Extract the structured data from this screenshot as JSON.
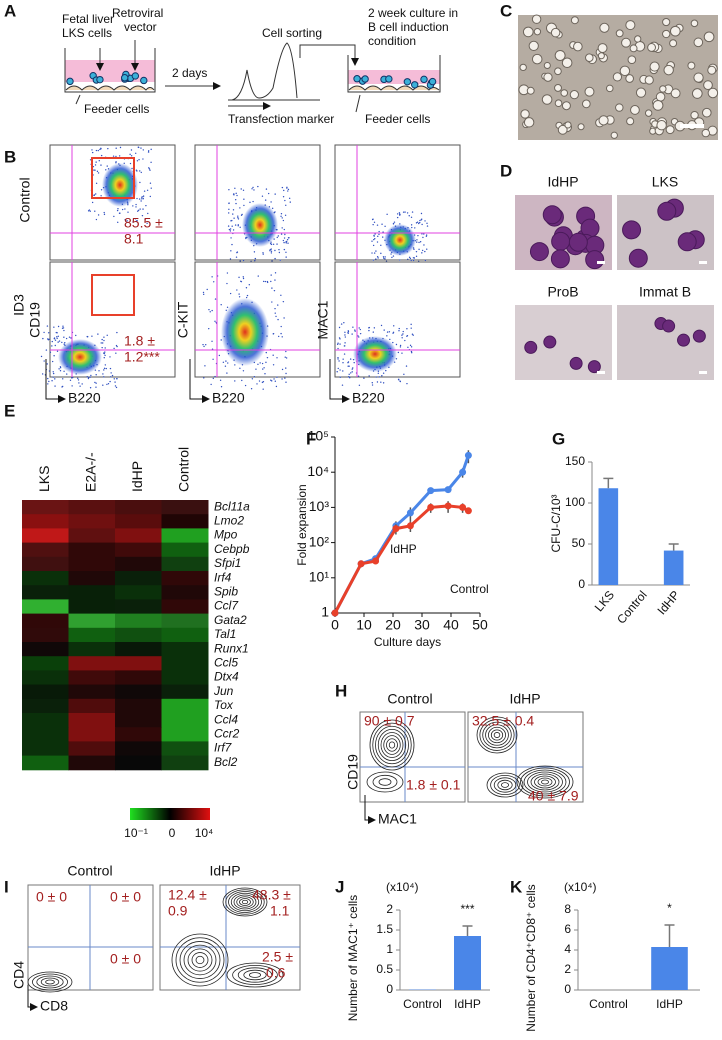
{
  "panel_labels": [
    "A",
    "B",
    "C",
    "D",
    "E",
    "F",
    "G",
    "H",
    "I",
    "J",
    "K"
  ],
  "schematic": {
    "fetal_liver": [
      "Fetal liver",
      "LKS cells"
    ],
    "vector": [
      "Retroviral",
      "vector"
    ],
    "days": "2 days",
    "sorting": "Cell sorting",
    "marker": "Transfection marker",
    "culture": [
      "2 week culture in",
      "B cell induction",
      "condition"
    ],
    "feeder_left": "Feeder cells",
    "feeder_right": "Feeder cells"
  },
  "flow_b": {
    "rows": [
      "Control",
      "ID3"
    ],
    "y_axes": [
      "CD19",
      "C-KIT",
      "MAC1"
    ],
    "x_axis": [
      "B220",
      "B220",
      "B220"
    ],
    "gate_control": [
      "85.5 ±",
      "8.1"
    ],
    "gate_id3": [
      "1.8 ±",
      "1.2***"
    ]
  },
  "micrographs": [
    "IdHP",
    "LKS",
    "ProB",
    "Immat B"
  ],
  "heatmap": {
    "columns": [
      "LKS",
      "E2A-/-",
      "IdHP",
      "Control"
    ],
    "genes": [
      "Bcl11a",
      "Lmo2",
      "Mpo",
      "Cebpb",
      "Sfpi1",
      "Irf4",
      "Spib",
      "Ccl7",
      "Gata2",
      "Tal1",
      "Runx1",
      "Ccl5",
      "Dtx4",
      "Jun",
      "Tox",
      "Ccl4",
      "Ccr2",
      "Irf7",
      "Bcl2"
    ],
    "colors": [
      [
        "#6a1414",
        "#5a1010",
        "#4a0e0e",
        "#3a1010"
      ],
      [
        "#8a1010",
        "#701010",
        "#5a0c0c",
        "#200505"
      ],
      [
        "#c01818",
        "#601010",
        "#801010",
        "#20a020"
      ],
      [
        "#501010",
        "#300808",
        "#400a0a",
        "#106010"
      ],
      [
        "#401010",
        "#300808",
        "#200808",
        "#104010"
      ],
      [
        "#0a300a",
        "#200808",
        "#0a200a",
        "#300808"
      ],
      [
        "#0a200a",
        "#082008",
        "#0a300a",
        "#200808"
      ],
      [
        "#30b030",
        "#082008",
        "#0a200a",
        "#300808"
      ],
      [
        "#300808",
        "#30a030",
        "#208020",
        "#207020"
      ],
      [
        "#300a0a",
        "#106010",
        "#105010",
        "#106010"
      ],
      [
        "#100808",
        "#0a300a",
        "#081808",
        "#0a300a"
      ],
      [
        "#0a400a",
        "#801010",
        "#801010",
        "#0a300a"
      ],
      [
        "#0a300a",
        "#400a0a",
        "#300808",
        "#0a300a"
      ],
      [
        "#081a08",
        "#200808",
        "#100808",
        "#0a200a"
      ],
      [
        "#0a200a",
        "#500c0c",
        "#200808",
        "#20a020"
      ],
      [
        "#0a300a",
        "#801010",
        "#200808",
        "#20a020"
      ],
      [
        "#0a300a",
        "#801010",
        "#300808",
        "#20a020"
      ],
      [
        "#0a300a",
        "#500c0c",
        "#100808",
        "#105010"
      ],
      [
        "#106010",
        "#200808",
        "#080808",
        "#104010"
      ]
    ],
    "scale_labels": [
      "10⁻¹",
      "0",
      "10⁴"
    ]
  },
  "contour_h": {
    "titles": [
      "Control",
      "IdHP"
    ],
    "labels_control": [
      "90 ± 0.7",
      "1.8 ±  0.1"
    ],
    "labels_idhp": [
      "32.5 ± 0.4",
      "40 ± 7.9"
    ],
    "y_axis": "CD19",
    "x_axis": "MAC1"
  },
  "contour_i": {
    "titles": [
      "Control",
      "IdHP"
    ],
    "labels_control": [
      "0 ± 0",
      "0 ± 0",
      "0 ± 0"
    ],
    "labels_idhp": [
      "12.4 ±",
      "0.9",
      "48.3 ±",
      "1.1",
      "2.5 ±",
      "0.6"
    ],
    "y_axis": "CD4",
    "x_axis": "CD8"
  },
  "chart_data": [
    {
      "type": "line",
      "ylabel": "Fold expansion",
      "xlabel": "Culture days",
      "log_y": true,
      "x": [
        0,
        9,
        14,
        21,
        26,
        33,
        39,
        44,
        46
      ],
      "xlim": [
        0,
        50
      ],
      "xticks": [
        0,
        10,
        20,
        30,
        40,
        50
      ],
      "ylim": [
        1,
        100000
      ],
      "yticks": [
        1,
        {
          "value": 10,
          "label": "10¹"
        },
        {
          "value": 100,
          "label": "10²"
        },
        {
          "value": 1000,
          "label": "10³"
        },
        {
          "value": 10000,
          "label": "10⁴"
        },
        {
          "value": 100000,
          "label": "10⁵"
        }
      ],
      "series": [
        {
          "name": "IdHP",
          "color": "#4a86e8",
          "values": [
            1,
            25,
            35,
            300,
            700,
            3000,
            3200,
            10000,
            30000
          ],
          "errors": [
            0,
            5,
            8,
            100,
            300,
            500,
            600,
            3000,
            12000
          ]
        },
        {
          "name": "Control",
          "color": "#e8402a",
          "values": [
            1,
            25,
            30,
            250,
            300,
            1000,
            1100,
            1000,
            800
          ],
          "errors": [
            0,
            5,
            5,
            80,
            100,
            300,
            400,
            300,
            100
          ]
        }
      ]
    },
    {
      "type": "bar",
      "ylabel": "CFU-C/10³",
      "categories": [
        "LKS",
        "Control",
        "IdHP"
      ],
      "values": [
        118,
        0,
        42
      ],
      "errors": [
        12,
        0,
        8
      ],
      "color": "#4a86e8",
      "ylim": [
        0,
        150
      ],
      "yticks": [
        0,
        50,
        100,
        150
      ]
    },
    {
      "type": "bar",
      "ylabel": "Number of MAC1⁺ cells",
      "unit_label": "(x10⁴)",
      "annotation": "***",
      "categories": [
        "Control",
        "IdHP"
      ],
      "values": [
        0.01,
        1.35
      ],
      "errors": [
        0,
        0.25
      ],
      "color": "#4a86e8",
      "ylim": [
        0,
        2
      ],
      "yticks": [
        0,
        0.5,
        1,
        1.5,
        2
      ]
    },
    {
      "type": "bar",
      "ylabel": "Number of CD4⁺CD8⁺ cells",
      "unit_label": "(x10⁴)",
      "annotation": "*",
      "categories": [
        "Control",
        "IdHP"
      ],
      "values": [
        0,
        4.3
      ],
      "errors": [
        0,
        2.2
      ],
      "color": "#4a86e8",
      "ylim": [
        0,
        8
      ],
      "yticks": [
        0,
        2,
        4,
        6,
        8
      ]
    }
  ]
}
